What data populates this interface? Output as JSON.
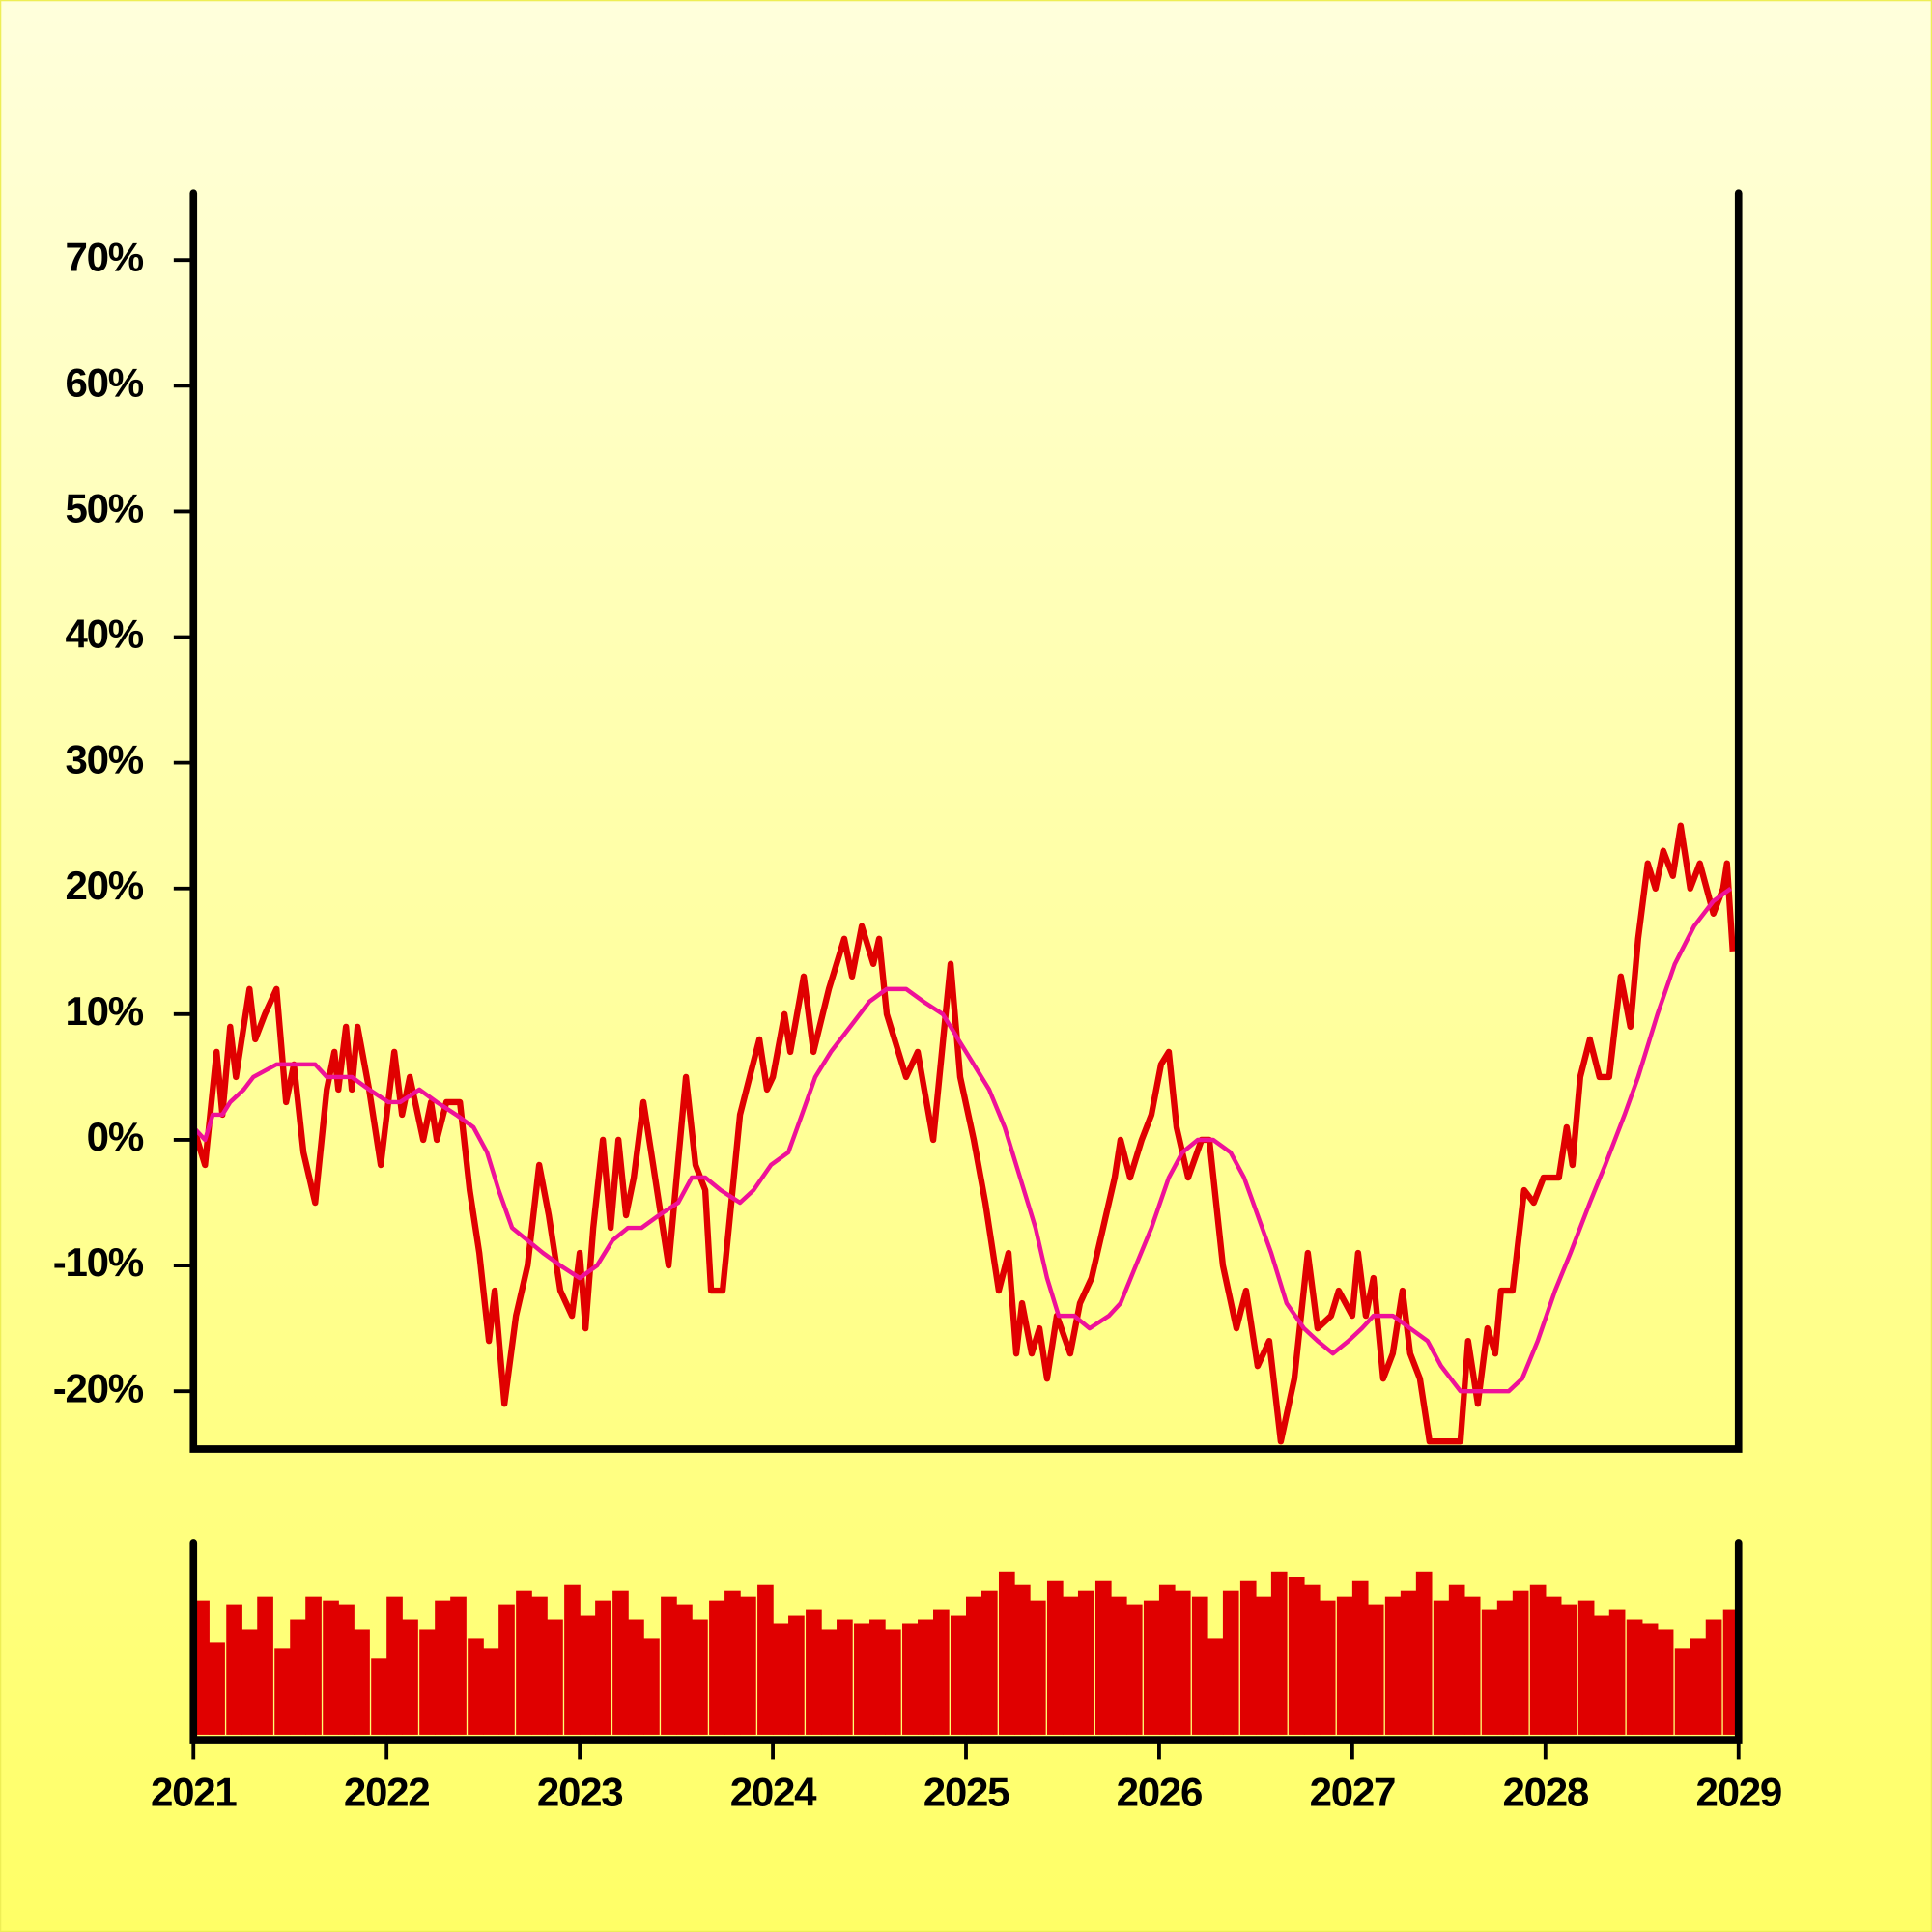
{
  "chart_data": [
    {
      "type": "line",
      "xlim": [
        2021,
        2029
      ],
      "ylim": [
        -24.6,
        75.3
      ],
      "yticks": [
        {
          "value": -20,
          "label": "-20%"
        },
        {
          "value": -10,
          "label": "-10%"
        },
        {
          "value": 0,
          "label": "0%"
        },
        {
          "value": 10,
          "label": "10%"
        },
        {
          "value": 20,
          "label": "20%"
        },
        {
          "value": 30,
          "label": "30%"
        },
        {
          "value": 40,
          "label": "40%"
        },
        {
          "value": 50,
          "label": "50%"
        },
        {
          "value": 60,
          "label": "60%"
        },
        {
          "value": 70,
          "label": "70%"
        }
      ],
      "series": [
        {
          "color": "#e00000",
          "x": [
            2021.0,
            2021.06,
            2021.12,
            2021.15,
            2021.19,
            2021.22,
            2021.29,
            2021.32,
            2021.37,
            2021.43,
            2021.48,
            2021.52,
            2021.57,
            2021.63,
            2021.69,
            2021.73,
            2021.75,
            2021.79,
            2021.82,
            2021.85,
            2021.91,
            2021.97,
            2022.04,
            2022.08,
            2022.12,
            2022.19,
            2022.23,
            2022.26,
            2022.31,
            2022.38,
            2022.43,
            2022.48,
            2022.53,
            2022.56,
            2022.61,
            2022.67,
            2022.73,
            2022.79,
            2022.84,
            2022.9,
            2022.96,
            2023.0,
            2023.03,
            2023.07,
            2023.12,
            2023.16,
            2023.2,
            2023.24,
            2023.28,
            2023.33,
            2023.38,
            2023.46,
            2023.55,
            2023.6,
            2023.65,
            2023.68,
            2023.74,
            2023.83,
            2023.88,
            2023.93,
            2023.97,
            2024.0,
            2024.06,
            2024.09,
            2024.16,
            2024.21,
            2024.29,
            2024.37,
            2024.41,
            2024.46,
            2024.52,
            2024.55,
            2024.59,
            2024.69,
            2024.75,
            2024.83,
            2024.92,
            2024.97,
            2025.04,
            2025.1,
            2025.17,
            2025.22,
            2025.26,
            2025.29,
            2025.34,
            2025.38,
            2025.42,
            2025.47,
            2025.54,
            2025.59,
            2025.65,
            2025.71,
            2025.77,
            2025.8,
            2025.85,
            2025.91,
            2025.96,
            2026.01,
            2026.05,
            2026.09,
            2026.15,
            2026.22,
            2026.26,
            2026.33,
            2026.4,
            2026.45,
            2026.51,
            2026.57,
            2026.63,
            2026.7,
            2026.77,
            2026.82,
            2026.89,
            2026.93,
            2027.0,
            2027.03,
            2027.07,
            2027.11,
            2027.16,
            2027.21,
            2027.26,
            2027.3,
            2027.35,
            2027.4,
            2027.56,
            2027.6,
            2027.65,
            2027.7,
            2027.74,
            2027.77,
            2027.83,
            2027.89,
            2027.94,
            2027.99,
            2028.07,
            2028.11,
            2028.14,
            2028.18,
            2028.23,
            2028.28,
            2028.33,
            2028.39,
            2028.44,
            2028.48,
            2028.53,
            2028.57,
            2028.61,
            2028.66,
            2028.7,
            2028.75,
            2028.8,
            2028.87,
            2028.92,
            2028.94,
            2028.97
          ],
          "values": [
            1,
            -2,
            7,
            2,
            9,
            5,
            12,
            8,
            10,
            12,
            3,
            6,
            -1,
            -5,
            4,
            7,
            4,
            9,
            4,
            9,
            4,
            -2,
            7,
            2,
            5,
            0,
            3,
            0,
            3,
            3,
            -4,
            -9,
            -16,
            -12,
            -21,
            -14,
            -10,
            -2,
            -6,
            -12,
            -14,
            -9,
            -15,
            -7,
            0,
            -7,
            0,
            -6,
            -3,
            3,
            -2,
            -10,
            5,
            -2,
            -4,
            -12,
            -12,
            2,
            5,
            8,
            4,
            5,
            10,
            7,
            13,
            7,
            12,
            16,
            13,
            17,
            14,
            16,
            10,
            5,
            7,
            0,
            14,
            5,
            0,
            -5,
            -12,
            -9,
            -17,
            -13,
            -17,
            -15,
            -19,
            -14,
            -17,
            -13,
            -11,
            -7,
            -3,
            0,
            -3,
            0,
            2,
            6,
            7,
            1,
            -3,
            0,
            0,
            -10,
            -15,
            -12,
            -18,
            -16,
            -24,
            -19,
            -9,
            -15,
            -14,
            -12,
            -14,
            -9,
            -14,
            -11,
            -19,
            -17,
            -12,
            -17,
            -19,
            -24,
            -24,
            -16,
            -21,
            -15,
            -17,
            -12,
            -12,
            -4,
            -5,
            -3,
            -3,
            1,
            -2,
            5,
            8,
            5,
            5,
            13,
            9,
            16,
            22,
            20,
            23,
            21,
            25,
            20,
            22,
            18,
            20,
            22,
            15
          ]
        },
        {
          "color": "#ee1199",
          "x": [
            2021.0,
            2021.06,
            2021.1,
            2021.15,
            2021.19,
            2021.26,
            2021.31,
            2021.43,
            2021.56,
            2021.63,
            2021.69,
            2021.82,
            2021.91,
            2022.01,
            2022.07,
            2022.17,
            2022.26,
            2022.36,
            2022.45,
            2022.52,
            2022.58,
            2022.65,
            2022.73,
            2022.81,
            2022.9,
            2023.0,
            2023.09,
            2023.17,
            2023.25,
            2023.32,
            2023.41,
            2023.51,
            2023.58,
            2023.65,
            2023.73,
            2023.83,
            2023.9,
            2023.99,
            2024.08,
            2024.15,
            2024.22,
            2024.3,
            2024.4,
            2024.5,
            2024.59,
            2024.69,
            2024.78,
            2024.88,
            2024.96,
            2025.04,
            2025.12,
            2025.2,
            2025.28,
            2025.36,
            2025.42,
            2025.48,
            2025.56,
            2025.64,
            2025.74,
            2025.8,
            2025.88,
            2025.96,
            2026.05,
            2026.12,
            2026.2,
            2026.28,
            2026.37,
            2026.44,
            2026.51,
            2026.58,
            2026.66,
            2026.75,
            2026.82,
            2026.9,
            2026.98,
            2027.05,
            2027.11,
            2027.21,
            2027.3,
            2027.39,
            2027.46,
            2027.56,
            2027.65,
            2027.75,
            2027.81,
            2027.88,
            2027.96,
            2028.05,
            2028.13,
            2028.23,
            2028.31,
            2028.41,
            2028.48,
            2028.58,
            2028.67,
            2028.77,
            2028.87,
            2028.96
          ],
          "values": [
            1,
            0,
            2,
            2,
            3,
            4,
            5,
            6,
            6,
            6,
            5,
            5,
            4,
            3,
            3,
            4,
            3,
            2,
            1,
            -1,
            -4,
            -7,
            -8,
            -9,
            -10,
            -11,
            -10,
            -8,
            -7,
            -7,
            -6,
            -5,
            -3,
            -3,
            -4,
            -5,
            -4,
            -2,
            -1,
            2,
            5,
            7,
            9,
            11,
            12,
            12,
            11,
            10,
            8,
            6,
            4,
            1,
            -3,
            -7,
            -11,
            -14,
            -14,
            -15,
            -14,
            -13,
            -10,
            -7,
            -3,
            -1,
            0,
            0,
            -1,
            -3,
            -6,
            -9,
            -13,
            -15,
            -16,
            -17,
            -16,
            -15,
            -14,
            -14,
            -15,
            -16,
            -18,
            -20,
            -20,
            -20,
            -20,
            -19,
            -16,
            -12,
            -9,
            -5,
            -2,
            2,
            5,
            10,
            14,
            17,
            19,
            20
          ]
        }
      ]
    },
    {
      "type": "bar",
      "xlim": [
        2021,
        2029
      ],
      "ylim": [
        0,
        100
      ],
      "xticks": [
        2021,
        2022,
        2023,
        2024,
        2025,
        2026,
        2027,
        2028,
        2029
      ],
      "series": [
        {
          "color": "#e00000",
          "x": [
            2021.0,
            2021.08,
            2021.17,
            2021.25,
            2021.33,
            2021.42,
            2021.5,
            2021.58,
            2021.67,
            2021.75,
            2021.83,
            2021.92,
            2022.0,
            2022.08,
            2022.17,
            2022.25,
            2022.33,
            2022.42,
            2022.5,
            2022.58,
            2022.67,
            2022.75,
            2022.83,
            2022.92,
            2023.0,
            2023.08,
            2023.17,
            2023.25,
            2023.33,
            2023.42,
            2023.5,
            2023.58,
            2023.67,
            2023.75,
            2023.83,
            2023.92,
            2024.0,
            2024.08,
            2024.17,
            2024.25,
            2024.33,
            2024.42,
            2024.5,
            2024.58,
            2024.67,
            2024.75,
            2024.83,
            2024.92,
            2025.0,
            2025.08,
            2025.17,
            2025.25,
            2025.33,
            2025.42,
            2025.5,
            2025.58,
            2025.67,
            2025.75,
            2025.83,
            2025.92,
            2026.0,
            2026.08,
            2026.17,
            2026.25,
            2026.33,
            2026.42,
            2026.5,
            2026.58,
            2026.67,
            2026.75,
            2026.83,
            2026.92,
            2027.0,
            2027.08,
            2027.17,
            2027.25,
            2027.33,
            2027.42,
            2027.5,
            2027.58,
            2027.67,
            2027.75,
            2027.83,
            2027.92,
            2028.0,
            2028.08,
            2028.17,
            2028.25,
            2028.33,
            2028.42,
            2028.5,
            2028.58,
            2028.67,
            2028.75,
            2028.83,
            2028.92
          ],
          "values": [
            70,
            48,
            68,
            55,
            72,
            45,
            60,
            72,
            70,
            68,
            55,
            40,
            72,
            60,
            55,
            70,
            72,
            50,
            45,
            68,
            75,
            72,
            60,
            78,
            62,
            70,
            75,
            60,
            50,
            72,
            68,
            60,
            70,
            75,
            72,
            78,
            58,
            62,
            65,
            55,
            60,
            58,
            60,
            55,
            58,
            60,
            65,
            62,
            72,
            75,
            85,
            78,
            70,
            80,
            72,
            75,
            80,
            72,
            68,
            70,
            78,
            75,
            72,
            50,
            75,
            80,
            72,
            85,
            82,
            78,
            70,
            72,
            80,
            68,
            72,
            75,
            85,
            70,
            78,
            72,
            65,
            70,
            75,
            78,
            72,
            68,
            70,
            62,
            65,
            60,
            58,
            55,
            45,
            50,
            60,
            65
          ]
        }
      ]
    }
  ]
}
